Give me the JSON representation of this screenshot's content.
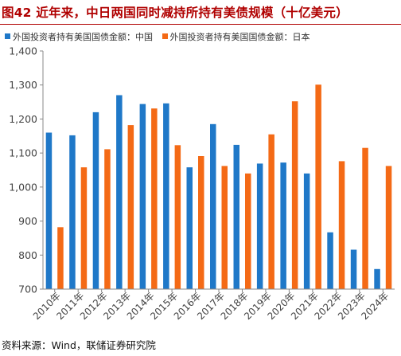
{
  "title": "图42 近年来，中日两国同时减持所持有美债规模（十亿美元）",
  "source": "资料来源：Wind，联储证券研究院",
  "colors": {
    "china": "#1f78c8",
    "japan": "#f46a16",
    "title": "#b00000",
    "axis": "#888888"
  },
  "chart_data": {
    "type": "bar",
    "categories": [
      "2010年",
      "2011年",
      "2012年",
      "2013年",
      "2014年",
      "2015年",
      "2016年",
      "2017年",
      "2018年",
      "2019年",
      "2020年",
      "2021年",
      "2022年",
      "2023年",
      "2024年"
    ],
    "series": [
      {
        "name": "外国投资者持有美国国债金额：中国",
        "values": [
          1160,
          1152,
          1220,
          1270,
          1244,
          1246,
          1058,
          1185,
          1124,
          1069,
          1072,
          1040,
          867,
          816,
          759
        ]
      },
      {
        "name": "外国投资者持有美国国债金额：日本",
        "values": [
          882,
          1058,
          1111,
          1182,
          1231,
          1123,
          1091,
          1062,
          1040,
          1155,
          1252,
          1301,
          1076,
          1115,
          1062
        ]
      }
    ],
    "ylim": [
      700,
      1400
    ],
    "yticks": [
      700,
      800,
      900,
      1000,
      1100,
      1200,
      1300,
      1400
    ],
    "ytick_labels": [
      "700",
      "800",
      "900",
      "1,000",
      "1,100",
      "1,200",
      "1,300",
      "1,400"
    ],
    "xlabel": "",
    "ylabel": "",
    "grid": false,
    "legend": "top-left"
  }
}
